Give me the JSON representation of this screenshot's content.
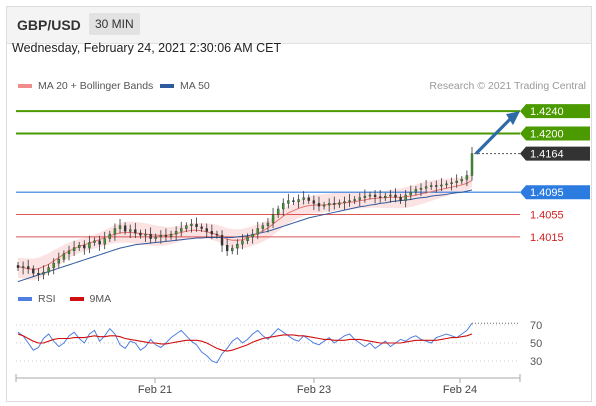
{
  "header": {
    "pair": "GBP/USD",
    "timeframe": "30 MIN"
  },
  "timestamp": "Wednesday, February 24, 2021 2:30:06 AM CET",
  "legend": {
    "bollinger_label": "MA 20 + Bollinger Bands",
    "ma50_label": "MA 50",
    "credit": "Research © 2021 Trading Central"
  },
  "rsi_legend": {
    "rsi_label": "RSI",
    "ma_label": "9MA"
  },
  "colors": {
    "bollinger": "#f08c8c",
    "ma50": "#2f5a9e",
    "resistance": "#4a9a00",
    "support": "#d02020",
    "pivot": "#2b7be0",
    "price_tag": "#333333",
    "rsi": "#4f7fe0",
    "rsi_ma": "#d01010",
    "candle_up": "#3a9a2a",
    "candle_down": "#333333"
  },
  "chart_data": [
    {
      "type": "candlestick",
      "x_tick_labels": [
        "Feb 21",
        "Feb 23",
        "Feb 24"
      ],
      "ylim": [
        1.392,
        1.426
      ],
      "levels": [
        {
          "label": "1.4240",
          "value": 1.424,
          "kind": "resistance"
        },
        {
          "label": "1.4200",
          "value": 1.42,
          "kind": "resistance"
        },
        {
          "label": "1.4164",
          "value": 1.4164,
          "kind": "current"
        },
        {
          "label": "1.4095",
          "value": 1.4095,
          "kind": "pivot"
        },
        {
          "label": "1.4055",
          "value": 1.4055,
          "kind": "support"
        },
        {
          "label": "1.4015",
          "value": 1.4015,
          "kind": "support"
        }
      ],
      "close": [
        1.396,
        1.3962,
        1.3958,
        1.395,
        1.3948,
        1.3952,
        1.396,
        1.3968,
        1.3975,
        1.3985,
        1.399,
        1.3996,
        1.4,
        1.3995,
        1.4005,
        1.4008,
        1.4002,
        1.4012,
        1.402,
        1.403,
        1.4035,
        1.4025,
        1.4028,
        1.4022,
        1.4018,
        1.402,
        1.4012,
        1.4015,
        1.4018,
        1.4016,
        1.402,
        1.4025,
        1.403,
        1.4035,
        1.4038,
        1.4033,
        1.403,
        1.4025,
        1.402,
        1.4018,
        1.4,
        1.399,
        1.3995,
        1.4002,
        1.4008,
        1.4015,
        1.402,
        1.403,
        1.4035,
        1.404,
        1.4055,
        1.4065,
        1.4075,
        1.408,
        1.4078,
        1.4082,
        1.4085,
        1.408,
        1.4075,
        1.407,
        1.4072,
        1.4075,
        1.4073,
        1.4076,
        1.4078,
        1.408,
        1.4082,
        1.4085,
        1.4088,
        1.409,
        1.4087,
        1.4085,
        1.4088,
        1.409,
        1.4086,
        1.408,
        1.409,
        1.4095,
        1.41,
        1.4102,
        1.4105,
        1.4107,
        1.4106,
        1.4108,
        1.411,
        1.4112,
        1.4115,
        1.4118,
        1.4125,
        1.4164
      ],
      "ma20": [
        1.3962,
        1.396,
        1.3958,
        1.3957,
        1.3958,
        1.3962,
        1.3966,
        1.3972,
        1.3978,
        1.3984,
        1.399,
        1.3994,
        1.3998,
        1.4001,
        1.4004,
        1.4007,
        1.401,
        1.4014,
        1.4017,
        1.402,
        1.4022,
        1.4023,
        1.4023,
        1.4022,
        1.4021,
        1.402,
        1.4019,
        1.4018,
        1.4018,
        1.4018,
        1.4019,
        1.4021,
        1.4023,
        1.4025,
        1.4027,
        1.4027,
        1.4026,
        1.4024,
        1.4022,
        1.4019,
        1.4015,
        1.4011,
        1.4009,
        1.4009,
        1.401,
        1.4013,
        1.4017,
        1.4021,
        1.4026,
        1.4031,
        1.4038,
        1.4045,
        1.4052,
        1.4058,
        1.4062,
        1.4066,
        1.4069,
        1.4071,
        1.4072,
        1.4072,
        1.4072,
        1.4073,
        1.4074,
        1.4075,
        1.4076,
        1.4077,
        1.4078,
        1.408,
        1.4081,
        1.4083,
        1.4084,
        1.4085,
        1.4085,
        1.4086,
        1.4086,
        1.4086,
        1.4087,
        1.4088,
        1.409,
        1.4092,
        1.4094,
        1.4096,
        1.4098,
        1.41,
        1.4102,
        1.4104,
        1.4106,
        1.4108,
        1.4111,
        1.4116
      ],
      "ma50": [
        1.3935,
        1.3938,
        1.3941,
        1.3944,
        1.3947,
        1.395,
        1.3953,
        1.3956,
        1.3959,
        1.3962,
        1.3965,
        1.3968,
        1.3971,
        1.3974,
        1.3977,
        1.398,
        1.3983,
        1.3986,
        1.3989,
        1.3992,
        1.3995,
        1.3997,
        1.3999,
        1.4001,
        1.4002,
        1.4003,
        1.4004,
        1.4005,
        1.4006,
        1.4007,
        1.4008,
        1.4009,
        1.401,
        1.4011,
        1.4012,
        1.4013,
        1.4013,
        1.4014,
        1.4014,
        1.4014,
        1.4014,
        1.4014,
        1.4014,
        1.4015,
        1.4016,
        1.4017,
        1.4019,
        1.4021,
        1.4023,
        1.4025,
        1.4028,
        1.4031,
        1.4034,
        1.4037,
        1.404,
        1.4043,
        1.4046,
        1.4049,
        1.4051,
        1.4053,
        1.4055,
        1.4057,
        1.4059,
        1.4061,
        1.4063,
        1.4065,
        1.4067,
        1.4069,
        1.407,
        1.4072,
        1.4073,
        1.4075,
        1.4076,
        1.4078,
        1.4079,
        1.408,
        1.4081,
        1.4082,
        1.4084,
        1.4085,
        1.4086,
        1.4088,
        1.4089,
        1.409,
        1.4091,
        1.4093,
        1.4094,
        1.4095,
        1.4097,
        1.4099
      ]
    },
    {
      "type": "line",
      "name": "RSI",
      "ylim": [
        20,
        80
      ],
      "y_tick_labels": [
        "70",
        "50",
        "30"
      ],
      "rsi": [
        62,
        58,
        50,
        42,
        45,
        55,
        60,
        52,
        46,
        50,
        58,
        62,
        55,
        50,
        60,
        64,
        52,
        58,
        66,
        60,
        48,
        44,
        52,
        50,
        42,
        46,
        54,
        48,
        45,
        50,
        56,
        60,
        64,
        58,
        52,
        48,
        40,
        36,
        30,
        28,
        38,
        44,
        52,
        56,
        50,
        54,
        60,
        64,
        58,
        54,
        60,
        66,
        62,
        58,
        54,
        52,
        58,
        54,
        50,
        48,
        52,
        56,
        50,
        54,
        58,
        60,
        54,
        50,
        46,
        50,
        44,
        48,
        52,
        46,
        50,
        54,
        52,
        56,
        58,
        54,
        52,
        50,
        56,
        58,
        60,
        58,
        56,
        60,
        64,
        72
      ],
      "rsi_ma": [
        60,
        58,
        55,
        52,
        50,
        50,
        52,
        54,
        55,
        55,
        55,
        56,
        56,
        56,
        57,
        58,
        57,
        57,
        58,
        58,
        57,
        55,
        54,
        53,
        52,
        51,
        50,
        50,
        49,
        49,
        50,
        51,
        52,
        53,
        53,
        53,
        52,
        50,
        47,
        44,
        42,
        41,
        42,
        44,
        46,
        48,
        51,
        53,
        55,
        56,
        57,
        58,
        59,
        59,
        59,
        58,
        58,
        57,
        56,
        55,
        54,
        54,
        53,
        53,
        53,
        54,
        54,
        54,
        53,
        52,
        51,
        50,
        50,
        50,
        50,
        50,
        51,
        52,
        53,
        53,
        53,
        53,
        53,
        54,
        55,
        56,
        56,
        57,
        58,
        60
      ]
    }
  ]
}
